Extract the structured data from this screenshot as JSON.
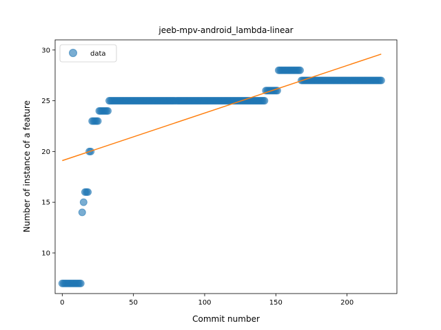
{
  "chart_data": {
    "type": "scatter",
    "title": "jeeb-mpv-android_lambda-linear",
    "xlabel": "Commit number",
    "ylabel": "Number of instance of a feature",
    "xlim": [
      -5,
      235
    ],
    "ylim": [
      6,
      31
    ],
    "xticks": [
      0,
      50,
      100,
      150,
      200
    ],
    "yticks": [
      10,
      15,
      20,
      25,
      30
    ],
    "grid": false,
    "legend": {
      "location": "top-left",
      "entries": [
        "data"
      ]
    },
    "colors": {
      "data": "#1f77b4",
      "fit": "#ff7f0e"
    },
    "series": [
      {
        "name": "data",
        "kind": "scatter",
        "segments": [
          {
            "x_from": 0,
            "x_to": 13,
            "y": 7
          },
          {
            "x_from": 14,
            "x_to": 14,
            "y": 14
          },
          {
            "x_from": 15,
            "x_to": 15,
            "y": 15
          },
          {
            "x_from": 16,
            "x_to": 18,
            "y": 16
          },
          {
            "x_from": 19,
            "x_to": 20,
            "y": 20
          },
          {
            "x_from": 21,
            "x_to": 25,
            "y": 23
          },
          {
            "x_from": 26,
            "x_to": 32,
            "y": 24
          },
          {
            "x_from": 33,
            "x_to": 142,
            "y": 25
          },
          {
            "x_from": 143,
            "x_to": 151,
            "y": 26
          },
          {
            "x_from": 152,
            "x_to": 167,
            "y": 28
          },
          {
            "x_from": 168,
            "x_to": 224,
            "y": 27
          }
        ]
      },
      {
        "kind": "line",
        "x": [
          0,
          224
        ],
        "y": [
          19.1,
          29.6
        ]
      }
    ]
  }
}
